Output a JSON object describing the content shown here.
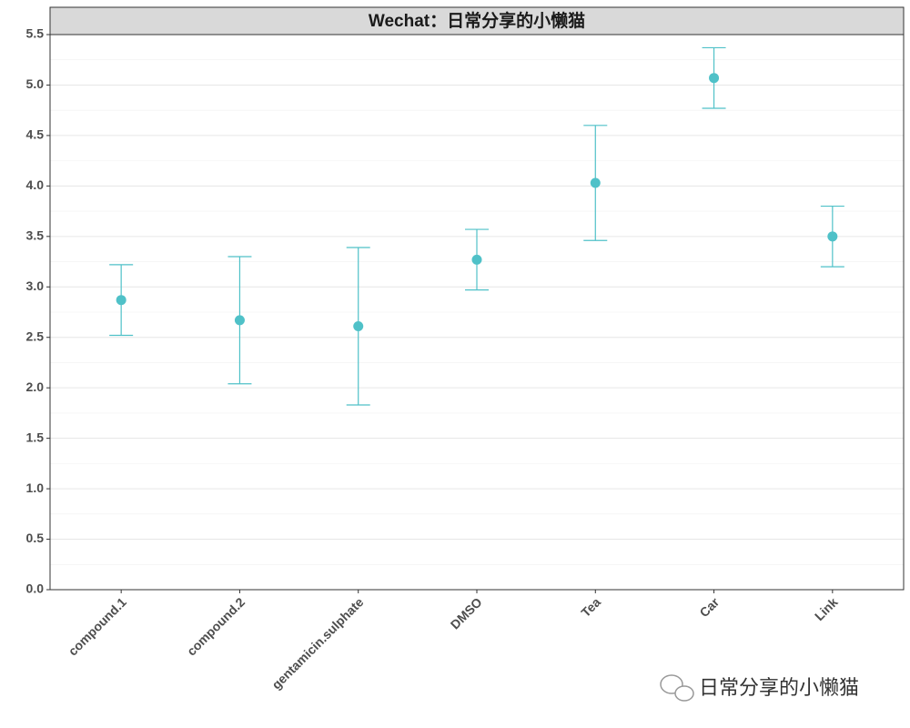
{
  "chart_data": {
    "type": "errorbar",
    "title": "Wechat：日常分享的小懒猫",
    "categories": [
      "compound.1",
      "compound.2",
      "gentamicin.sulphate",
      "DMSO",
      "Tea",
      "Car",
      "Link"
    ],
    "values": [
      2.87,
      2.67,
      2.61,
      3.27,
      4.03,
      5.07,
      3.5
    ],
    "errors": [
      0.35,
      0.63,
      0.78,
      0.3,
      0.57,
      0.3,
      0.3
    ],
    "color": "#4fc1c8",
    "ylim": [
      0,
      5.5
    ],
    "yticks": [
      {
        "value": 0,
        "label": "0.0"
      },
      0.5,
      {
        "value": 1,
        "label": "1.0"
      },
      1.5,
      {
        "value": 2,
        "label": "2.0"
      },
      2.5,
      {
        "value": 3,
        "label": "3.0"
      },
      3.5,
      {
        "value": 4,
        "label": "4.0"
      },
      4.5,
      {
        "value": 5,
        "label": "5.0"
      },
      5.5
    ],
    "grid": true,
    "minor_grid": true,
    "watermark": "日常分享的小懒猫"
  }
}
